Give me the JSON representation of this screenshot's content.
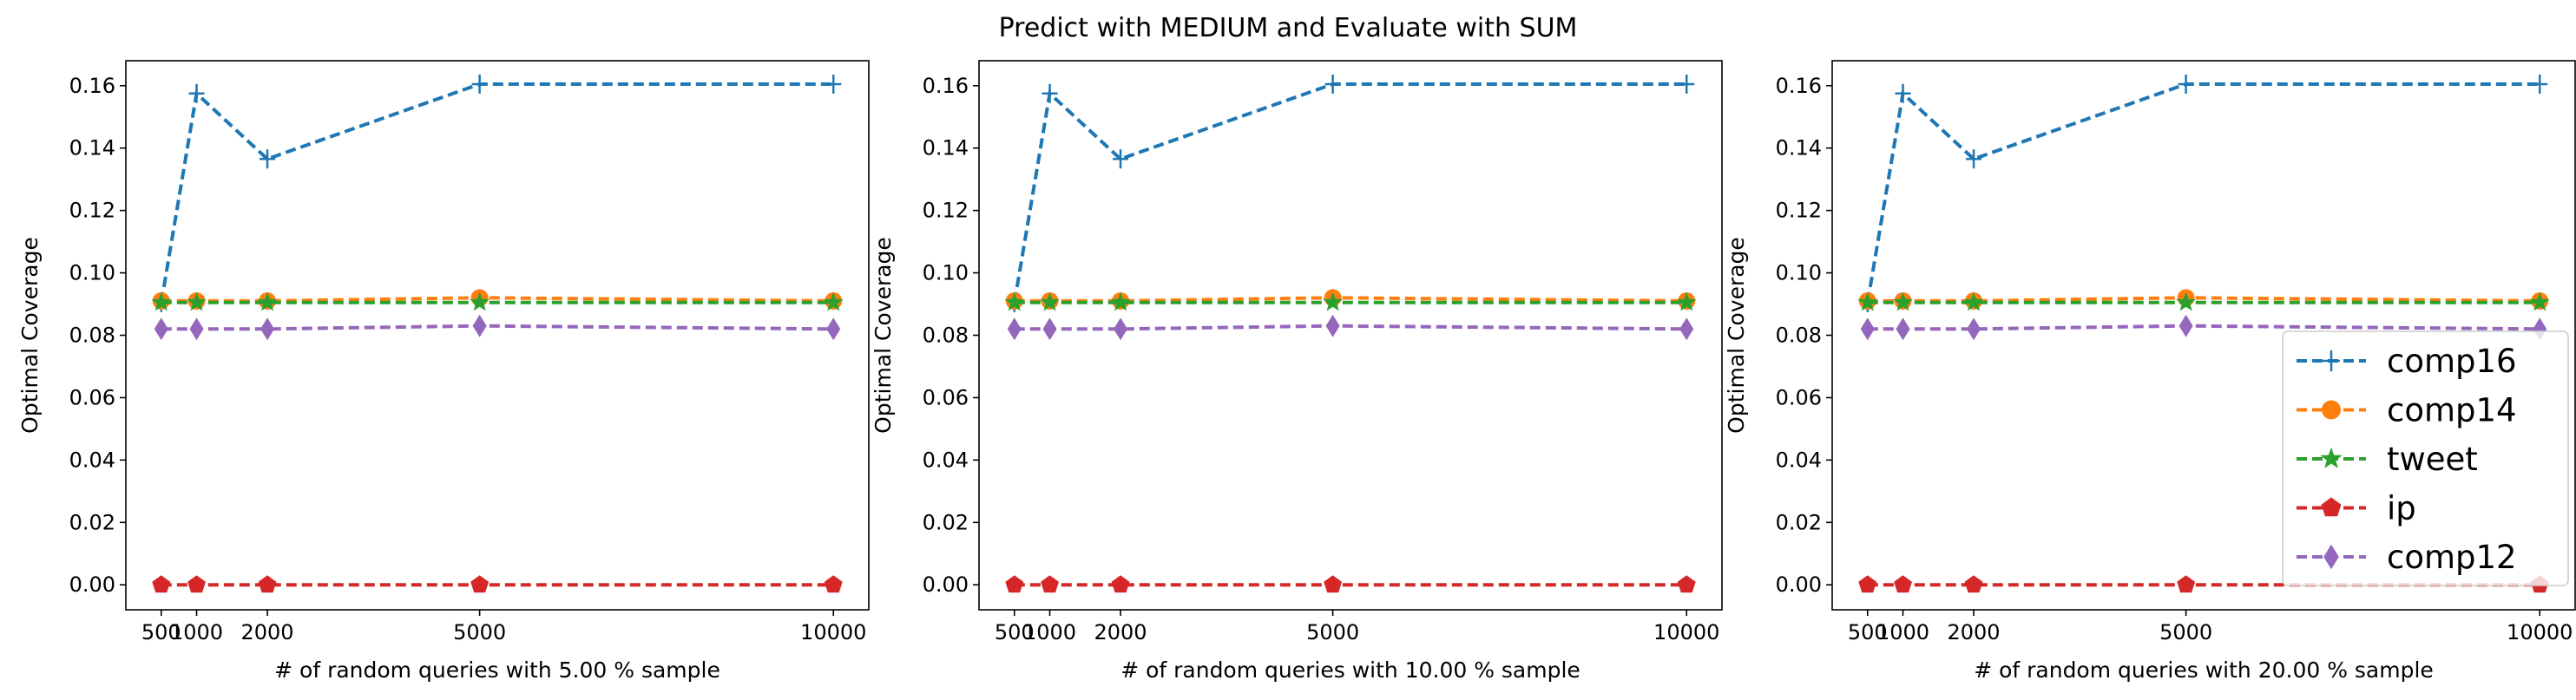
{
  "figure_title": "Predict with MEDIUM and Evaluate with SUM",
  "chart_data": [
    {
      "type": "line",
      "title": "",
      "xlabel": "# of random queries with 5.00 % sample",
      "ylabel": "Optimal Coverage",
      "x": [
        500,
        1000,
        2000,
        5000,
        10000
      ],
      "xticks": [
        "500",
        "1000",
        "2000",
        "5000",
        "10000"
      ],
      "yticks": [
        "0.00",
        "0.02",
        "0.04",
        "0.06",
        "0.08",
        "0.10",
        "0.12",
        "0.14",
        "0.16"
      ],
      "xlim": [
        0,
        10500
      ],
      "ylim": [
        -0.008,
        0.168
      ],
      "grid": false,
      "series": [
        {
          "name": "comp16",
          "color": "#1f77b4",
          "marker": "plus",
          "values": [
            0.0905,
            0.1575,
            0.1365,
            0.1605,
            0.1605
          ]
        },
        {
          "name": "comp14",
          "color": "#ff7f0e",
          "marker": "circle",
          "values": [
            0.091,
            0.091,
            0.091,
            0.092,
            0.091
          ]
        },
        {
          "name": "tweet",
          "color": "#2ca02c",
          "marker": "star",
          "values": [
            0.0905,
            0.0905,
            0.0905,
            0.0905,
            0.0905
          ]
        },
        {
          "name": "ip",
          "color": "#d62728",
          "marker": "pentagon",
          "values": [
            0.0,
            0.0,
            0.0,
            0.0,
            0.0
          ]
        },
        {
          "name": "comp12",
          "color": "#9467bd",
          "marker": "diamond",
          "values": [
            0.082,
            0.082,
            0.082,
            0.083,
            0.082
          ]
        }
      ]
    },
    {
      "type": "line",
      "title": "",
      "xlabel": "# of random queries with 10.00 % sample",
      "ylabel": "Optimal Coverage",
      "x": [
        500,
        1000,
        2000,
        5000,
        10000
      ],
      "xticks": [
        "500",
        "1000",
        "2000",
        "5000",
        "10000"
      ],
      "yticks": [
        "0.00",
        "0.02",
        "0.04",
        "0.06",
        "0.08",
        "0.10",
        "0.12",
        "0.14",
        "0.16"
      ],
      "xlim": [
        0,
        10500
      ],
      "ylim": [
        -0.008,
        0.168
      ],
      "grid": false,
      "series": [
        {
          "name": "comp16",
          "color": "#1f77b4",
          "marker": "plus",
          "values": [
            0.0905,
            0.1575,
            0.1365,
            0.1605,
            0.1605
          ]
        },
        {
          "name": "comp14",
          "color": "#ff7f0e",
          "marker": "circle",
          "values": [
            0.091,
            0.091,
            0.091,
            0.092,
            0.091
          ]
        },
        {
          "name": "tweet",
          "color": "#2ca02c",
          "marker": "star",
          "values": [
            0.0905,
            0.0905,
            0.0905,
            0.0905,
            0.0905
          ]
        },
        {
          "name": "ip",
          "color": "#d62728",
          "marker": "pentagon",
          "values": [
            0.0,
            0.0,
            0.0,
            0.0,
            0.0
          ]
        },
        {
          "name": "comp12",
          "color": "#9467bd",
          "marker": "diamond",
          "values": [
            0.082,
            0.082,
            0.082,
            0.083,
            0.082
          ]
        }
      ]
    },
    {
      "type": "line",
      "title": "",
      "xlabel": "# of random queries with 20.00 % sample",
      "ylabel": "Optimal Coverage",
      "x": [
        500,
        1000,
        2000,
        5000,
        10000
      ],
      "xticks": [
        "500",
        "1000",
        "2000",
        "5000",
        "10000"
      ],
      "yticks": [
        "0.00",
        "0.02",
        "0.04",
        "0.06",
        "0.08",
        "0.10",
        "0.12",
        "0.14",
        "0.16"
      ],
      "xlim": [
        0,
        10500
      ],
      "ylim": [
        -0.008,
        0.168
      ],
      "grid": false,
      "legend_position": "bottom-right",
      "series": [
        {
          "name": "comp16",
          "color": "#1f77b4",
          "marker": "plus",
          "values": [
            0.0905,
            0.1575,
            0.1365,
            0.1605,
            0.1605
          ]
        },
        {
          "name": "comp14",
          "color": "#ff7f0e",
          "marker": "circle",
          "values": [
            0.091,
            0.091,
            0.091,
            0.092,
            0.091
          ]
        },
        {
          "name": "tweet",
          "color": "#2ca02c",
          "marker": "star",
          "values": [
            0.0905,
            0.0905,
            0.0905,
            0.0905,
            0.0905
          ]
        },
        {
          "name": "ip",
          "color": "#d62728",
          "marker": "pentagon",
          "values": [
            0.0,
            0.0,
            0.0,
            0.0,
            0.0
          ]
        },
        {
          "name": "comp12",
          "color": "#9467bd",
          "marker": "diamond",
          "values": [
            0.082,
            0.082,
            0.082,
            0.083,
            0.082
          ]
        }
      ]
    }
  ]
}
